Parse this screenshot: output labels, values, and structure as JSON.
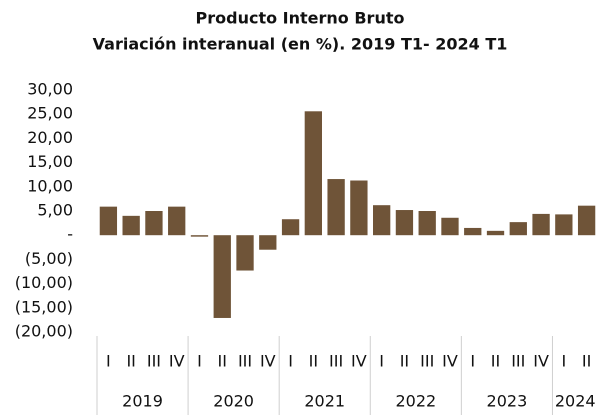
{
  "chart_data": {
    "type": "bar",
    "title": "Producto Interno Bruto",
    "subtitle": "Variación interanual (en %). 2019 T1- 2024 T1",
    "categories": [
      "I",
      "II",
      "III",
      "IV",
      "I",
      "II",
      "III",
      "IV",
      "I",
      "II",
      "III",
      "IV",
      "I",
      "II",
      "III",
      "IV",
      "I",
      "II",
      "III",
      "IV",
      "I",
      "II"
    ],
    "year_groups": [
      {
        "name": "2019",
        "size": 4
      },
      {
        "name": "2020",
        "size": 4
      },
      {
        "name": "2021",
        "size": 4
      },
      {
        "name": "2022",
        "size": 4
      },
      {
        "name": "2023",
        "size": 4
      },
      {
        "name": "2024",
        "size": 2
      }
    ],
    "values": [
      5.9,
      4.0,
      5.0,
      5.9,
      -0.3,
      -17.1,
      -7.3,
      -3.0,
      3.3,
      25.6,
      11.6,
      11.3,
      6.2,
      5.2,
      5.0,
      3.6,
      1.5,
      0.9,
      2.7,
      4.4,
      4.3,
      6.1
    ],
    "color": "#6f5438",
    "ylim": [
      -20,
      30
    ],
    "yticks": [
      {
        "value": 30,
        "label": "30,00"
      },
      {
        "value": 25,
        "label": "25,00"
      },
      {
        "value": 20,
        "label": "20,00"
      },
      {
        "value": 15,
        "label": "15,00"
      },
      {
        "value": 10,
        "label": "10,00"
      },
      {
        "value": 5,
        "label": "5,00"
      },
      {
        "value": 0,
        "label": "-"
      },
      {
        "value": -5,
        "label": "(5,00)"
      },
      {
        "value": -10,
        "label": "(10,00)"
      },
      {
        "value": -15,
        "label": "(15,00)"
      },
      {
        "value": -20,
        "label": "(20,00)"
      }
    ],
    "grid": false
  }
}
